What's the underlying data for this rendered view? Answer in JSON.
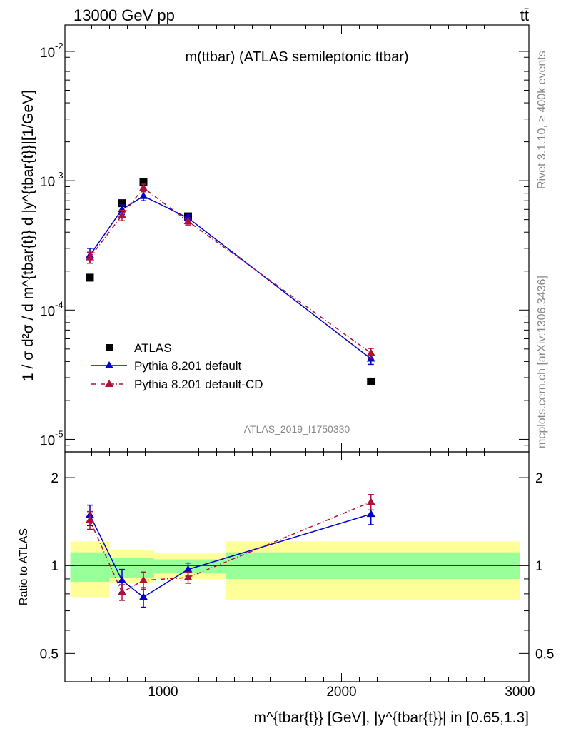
{
  "header": {
    "beam": "13000 GeV pp",
    "process": "tt̄",
    "analysis_id": "ATLAS_2019_I1750330",
    "rivet": "Rivet 3.1.10, ≥ 400k events",
    "site": "mcplots.cern.ch [arXiv:1306.3436]"
  },
  "chart_data": [
    {
      "type": "scatter",
      "title": "m(ttbar) (ATLAS semileptonic ttbar)",
      "ylabel": "1 / σ d²σ / d m^{tbar{t}} d |y^{tbar{t}}|[1/GeV]",
      "xlabel": "m^{tbar{t}} [GeV], |y^{tbar{t}}| in [0.65,1.3]",
      "xlim": [
        450,
        3050
      ],
      "ylim": [
        8e-06,
        0.016
      ],
      "yscale": "log",
      "xticks": [
        1000,
        2000,
        3000
      ],
      "xtick_labels": [
        "1000",
        "2000",
        "3000"
      ],
      "yticks": [
        1e-05,
        0.0001,
        0.001,
        0.01
      ],
      "ytick_labels": [
        "10",
        "10",
        "10",
        "10"
      ],
      "ytick_exponents": [
        "-5",
        "-4",
        "-3",
        "-2"
      ],
      "legend_position": "lower-left",
      "series": [
        {
          "name": "ATLAS",
          "color": "#000000",
          "marker": "square",
          "line": "none",
          "x": [
            590,
            770,
            890,
            1140,
            2165
          ],
          "y": [
            0.000178,
            0.00067,
            0.00098,
            0.00053,
            2.8e-05
          ]
        },
        {
          "name": "Pythia 8.201 default",
          "color": "#0000cc",
          "marker": "triangle",
          "line": "solid",
          "x": [
            590,
            770,
            890,
            1140,
            2165
          ],
          "y": [
            0.000265,
            0.0006,
            0.00076,
            0.000515,
            4.2e-05
          ],
          "yerr": [
            3.5e-05,
            5e-05,
            6e-05,
            3e-05,
            4e-06
          ]
        },
        {
          "name": "Pythia 8.201 default-CD",
          "color": "#b0103a",
          "marker": "triangle",
          "line": "dashdot",
          "x": [
            590,
            770,
            890,
            1140,
            2165
          ],
          "y": [
            0.000255,
            0.00054,
            0.00088,
            0.000485,
            4.65e-05
          ],
          "yerr": [
            2.5e-05,
            5e-05,
            6e-05,
            3e-05,
            4e-06
          ]
        }
      ]
    },
    {
      "type": "scatter",
      "ylabel": "Ratio to ATLAS",
      "xlim": [
        450,
        3050
      ],
      "ylim": [
        0.4,
        2.45
      ],
      "yscale": "log",
      "yticks": [
        0.5,
        1,
        2
      ],
      "ytick_labels": [
        "0.5",
        "1",
        "2"
      ],
      "bands": {
        "bin_edges": [
          480,
          700,
          950,
          1350,
          3000
        ],
        "inner_low": [
          0.88,
          0.91,
          0.94,
          0.9
        ],
        "inner_high": [
          1.11,
          1.06,
          1.05,
          1.11
        ],
        "outer_low": [
          0.78,
          0.87,
          0.9,
          0.76
        ],
        "outer_high": [
          1.21,
          1.13,
          1.1,
          1.21
        ],
        "inner_color": "#99ff99",
        "outer_color": "#ffff99"
      },
      "series": [
        {
          "name": "Pythia 8.201 default",
          "color": "#0000cc",
          "x": [
            590,
            770,
            890,
            1140,
            2165
          ],
          "y": [
            1.49,
            0.89,
            0.78,
            0.97,
            1.5
          ],
          "yerr": [
            0.12,
            0.08,
            0.06,
            0.05,
            0.12
          ]
        },
        {
          "name": "Pythia 8.201 default-CD",
          "color": "#b0103a",
          "x": [
            590,
            770,
            890,
            1140,
            2165
          ],
          "y": [
            1.43,
            0.81,
            0.89,
            0.91,
            1.65
          ],
          "yerr": [
            0.1,
            0.05,
            0.06,
            0.04,
            0.1
          ]
        }
      ]
    }
  ]
}
